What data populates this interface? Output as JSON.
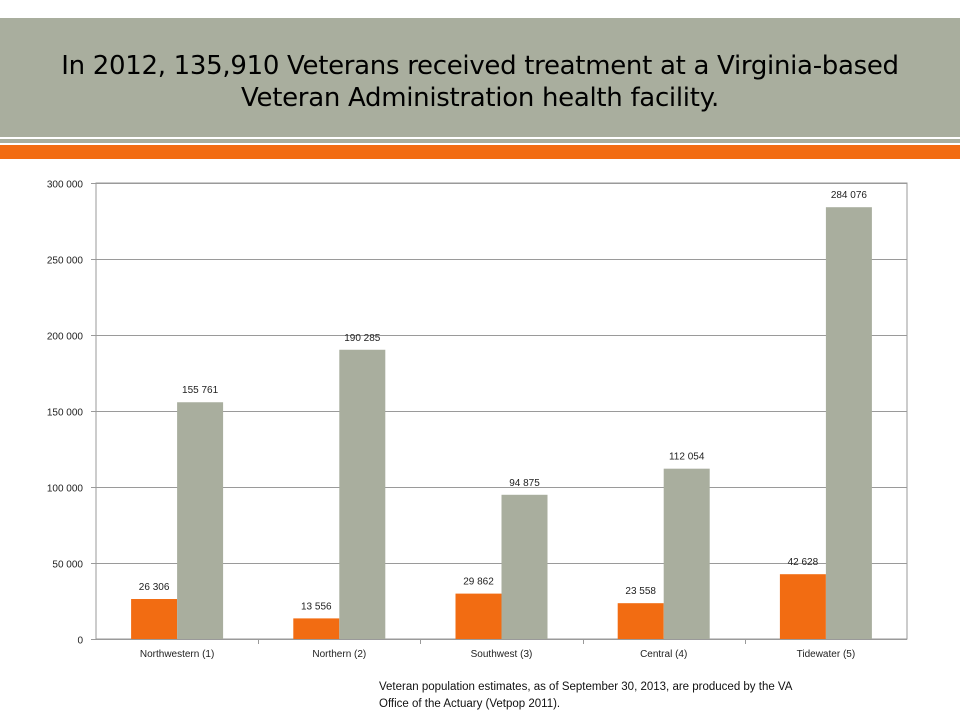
{
  "header": {
    "title_line1": "In 2012, 135,910 Veterans received treatment at a Virginia-based",
    "title_line2": "Veteran Administration health facility."
  },
  "colors": {
    "band": "#a9ae9e",
    "accent": "#f26c12",
    "series_treated": "#f26c12",
    "series_population": "#a9ae9e"
  },
  "chart_data": {
    "type": "bar",
    "categories": [
      "Northwestern (1)",
      "Northern (2)",
      "Southwest (3)",
      "Central (4)",
      "Tidewater (5)"
    ],
    "series": [
      {
        "values": [
          26306,
          13556,
          29862,
          23558,
          42628
        ],
        "labels": [
          "26 306",
          "13 556",
          "29 862",
          "23 558",
          "42 628"
        ],
        "color": "#f26c12"
      },
      {
        "values": [
          155761,
          190285,
          94875,
          112054,
          284076
        ],
        "labels": [
          "155 761",
          "190 285",
          "94 875",
          "112 054",
          "284 076"
        ],
        "color": "#a9ae9e"
      }
    ],
    "ylim": [
      0,
      300000
    ],
    "yticks": [
      0,
      50000,
      100000,
      150000,
      200000,
      250000,
      300000
    ],
    "ytick_labels": [
      "0",
      "50 000",
      "100 000",
      "150 000",
      "200 000",
      "250 000",
      "300 000"
    ],
    "grid": true,
    "legend": "none",
    "title": "",
    "xlabel": "",
    "ylabel": ""
  },
  "footnote": {
    "line1": "Veteran population estimates, as of September 30, 2013, are produced by the VA",
    "line2": "Office of the Actuary (Vetpop 2011)."
  }
}
